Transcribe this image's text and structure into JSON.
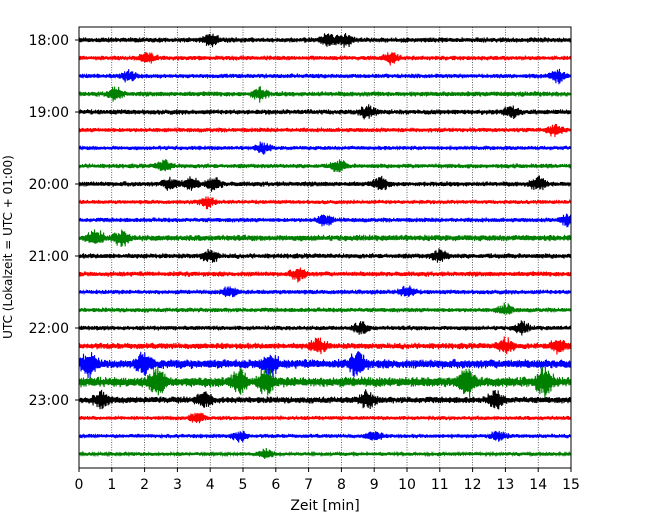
{
  "chart_data": {
    "type": "line",
    "title": "",
    "xlabel": "Zeit  [min]",
    "ylabel": "UTC (Lokalzeit = UTC + 01:00)",
    "xlim": [
      0,
      15
    ],
    "xticks": [
      0,
      1,
      2,
      3,
      4,
      5,
      6,
      7,
      8,
      9,
      10,
      11,
      12,
      13,
      14,
      15
    ],
    "ylim": [
      "17:45",
      "23:58"
    ],
    "yticks": [
      "18:00",
      "19:00",
      "20:00",
      "21:00",
      "22:00",
      "23:00"
    ],
    "grid": "vertical dotted lines at each minute",
    "trace_interval_minutes": 15,
    "trace_colors": [
      "#000000",
      "#ff0000",
      "#0000ff",
      "#008000"
    ],
    "traces": [
      {
        "start": "18:00",
        "color": "#000000",
        "amplitude": 1.0,
        "bursts": [
          4.0,
          7.6,
          8.1
        ]
      },
      {
        "start": "18:15",
        "color": "#ff0000",
        "amplitude": 0.9,
        "bursts": [
          2.1,
          9.5
        ]
      },
      {
        "start": "18:30",
        "color": "#0000ff",
        "amplitude": 0.9,
        "bursts": [
          1.5,
          14.6
        ]
      },
      {
        "start": "18:45",
        "color": "#008000",
        "amplitude": 1.0,
        "bursts": [
          1.1,
          5.5
        ]
      },
      {
        "start": "19:00",
        "color": "#000000",
        "amplitude": 1.0,
        "bursts": [
          8.8,
          13.2
        ]
      },
      {
        "start": "19:15",
        "color": "#ff0000",
        "amplitude": 0.9,
        "bursts": [
          14.5
        ]
      },
      {
        "start": "19:30",
        "color": "#0000ff",
        "amplitude": 0.8,
        "bursts": [
          5.6
        ]
      },
      {
        "start": "19:45",
        "color": "#008000",
        "amplitude": 0.9,
        "bursts": [
          2.6,
          7.9
        ]
      },
      {
        "start": "20:00",
        "color": "#000000",
        "amplitude": 1.0,
        "bursts": [
          2.8,
          3.4,
          4.1,
          9.2,
          14.0
        ]
      },
      {
        "start": "20:15",
        "color": "#ff0000",
        "amplitude": 0.8,
        "bursts": [
          3.9
        ]
      },
      {
        "start": "20:30",
        "color": "#0000ff",
        "amplitude": 0.9,
        "bursts": [
          7.5,
          14.9
        ]
      },
      {
        "start": "20:45",
        "color": "#008000",
        "amplitude": 1.2,
        "bursts": [
          0.5,
          1.3
        ]
      },
      {
        "start": "21:00",
        "color": "#000000",
        "amplitude": 1.0,
        "bursts": [
          11.0,
          4.0
        ]
      },
      {
        "start": "21:15",
        "color": "#ff0000",
        "amplitude": 1.0,
        "bursts": [
          6.7
        ]
      },
      {
        "start": "21:30",
        "color": "#0000ff",
        "amplitude": 0.9,
        "bursts": [
          4.6,
          10.0
        ]
      },
      {
        "start": "21:45",
        "color": "#008000",
        "amplitude": 0.9,
        "bursts": [
          13.0
        ]
      },
      {
        "start": "22:00",
        "color": "#000000",
        "amplitude": 0.9,
        "bursts": [
          8.6,
          13.5
        ]
      },
      {
        "start": "22:15",
        "color": "#ff0000",
        "amplitude": 1.2,
        "bursts": [
          7.3,
          13.0,
          14.6
        ]
      },
      {
        "start": "22:30",
        "color": "#0000ff",
        "amplitude": 1.8,
        "bursts": [
          0.3,
          2.0,
          5.8,
          8.5
        ]
      },
      {
        "start": "22:45",
        "color": "#008000",
        "amplitude": 2.0,
        "bursts": [
          2.4,
          4.9,
          5.7,
          11.8,
          14.2
        ]
      },
      {
        "start": "23:00",
        "color": "#000000",
        "amplitude": 1.3,
        "bursts": [
          0.7,
          3.8,
          8.8,
          12.7
        ]
      },
      {
        "start": "23:15",
        "color": "#ff0000",
        "amplitude": 0.8,
        "bursts": [
          3.6
        ]
      },
      {
        "start": "23:30",
        "color": "#0000ff",
        "amplitude": 0.8,
        "bursts": [
          4.9,
          9.0,
          12.8
        ]
      },
      {
        "start": "23:45",
        "color": "#008000",
        "amplitude": 0.7,
        "bursts": [
          5.7
        ]
      }
    ]
  }
}
